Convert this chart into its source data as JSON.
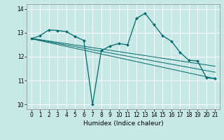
{
  "xlabel": "Humidex (Indice chaleur)",
  "x_ticks": [
    0,
    1,
    2,
    3,
    4,
    5,
    6,
    7,
    8,
    9,
    10,
    11,
    12,
    13,
    14,
    15,
    16,
    17,
    18,
    19,
    20,
    21
  ],
  "xlim": [
    -0.5,
    21.5
  ],
  "ylim": [
    9.8,
    14.2
  ],
  "y_ticks": [
    10,
    11,
    12,
    13,
    14
  ],
  "bg_color": "#c8e8e8",
  "line_color": "#006868",
  "grid_color": "#ffffff",
  "series": {
    "main_line": {
      "x": [
        0,
        1,
        2,
        3,
        4,
        5,
        6,
        7,
        8,
        9,
        10,
        11,
        12,
        13,
        14,
        15,
        16,
        17,
        18,
        19,
        20,
        21
      ],
      "y": [
        12.75,
        12.88,
        13.12,
        13.1,
        13.05,
        12.85,
        12.68,
        10.0,
        12.25,
        12.45,
        12.55,
        12.5,
        13.6,
        13.82,
        13.35,
        12.88,
        12.65,
        12.18,
        11.85,
        11.82,
        11.12,
        11.08
      ]
    },
    "trend1": {
      "x": [
        0,
        21
      ],
      "y": [
        12.75,
        11.08
      ]
    },
    "trend2": {
      "x": [
        0,
        21
      ],
      "y": [
        12.76,
        11.35
      ]
    },
    "trend3": {
      "x": [
        0,
        21
      ],
      "y": [
        12.77,
        11.6
      ]
    }
  }
}
